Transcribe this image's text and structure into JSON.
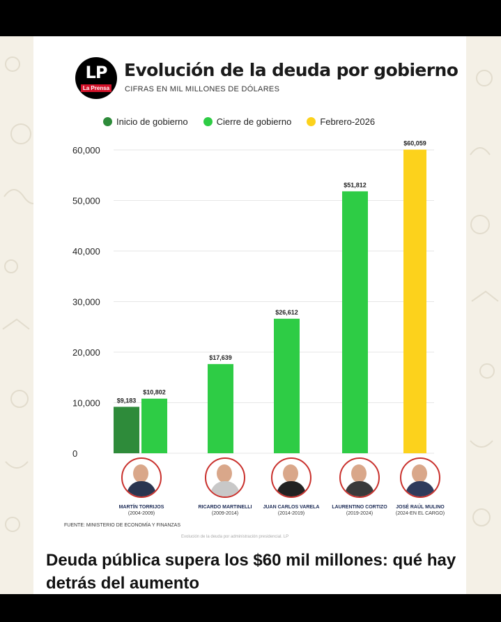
{
  "header": {
    "logo_text": "LP",
    "logo_subtext": "La Prensa",
    "title": "Evolución de la deuda por gobierno",
    "subtitle": "CIFRAS EN MIL MILLONES DE DÓLARES"
  },
  "legend": [
    {
      "label": "Inicio de gobierno",
      "color": "#2e8b3a"
    },
    {
      "label": "Cierre de gobierno",
      "color": "#2ecc45"
    },
    {
      "label": "Febrero-2026",
      "color": "#fcd21c"
    }
  ],
  "chart_data": {
    "type": "bar",
    "title": "Evolución de la deuda por gobierno",
    "subtitle": "CIFRAS EN MIL MILLONES DE DÓLARES",
    "ylim": [
      0,
      60000
    ],
    "yticks": [
      0,
      10000,
      20000,
      30000,
      40000,
      50000,
      60000
    ],
    "ytick_labels": [
      "0",
      "10,000",
      "20,000",
      "30,000",
      "40,000",
      "50,000",
      "60,000"
    ],
    "grid": true,
    "legend_position": "top",
    "categories": [
      "MARTÍN TORRIJOS",
      "RICARDO MARTINELLI",
      "JUAN CARLOS VARELA",
      "LAURENTINO CORTIZO",
      "JOSÉ RAÚL MULINO"
    ],
    "bars": [
      {
        "category": 0,
        "series": "Inicio de gobierno",
        "value": 9183,
        "label": "$9,183",
        "color": "#2e8b3a"
      },
      {
        "category": 0,
        "series": "Cierre de gobierno",
        "value": 10802,
        "label": "$10,802",
        "color": "#2ecc45"
      },
      {
        "category": 1,
        "series": "Cierre de gobierno",
        "value": 17639,
        "label": "$17,639",
        "color": "#2ecc45"
      },
      {
        "category": 2,
        "series": "Cierre de gobierno",
        "value": 26612,
        "label": "$26,612",
        "color": "#2ecc45"
      },
      {
        "category": 3,
        "series": "Cierre de gobierno",
        "value": 51812,
        "label": "$51,812",
        "color": "#2ecc45"
      },
      {
        "category": 4,
        "series": "Febrero-2026",
        "value": 60059,
        "label": "$60,059",
        "color": "#fcd21c"
      }
    ]
  },
  "people": [
    {
      "name": "MARTÍN TORRIJOS",
      "period": "(2004-2009)"
    },
    {
      "name": "RICARDO MARTINELLI",
      "period": "(2009-2014)"
    },
    {
      "name": "JUAN CARLOS VARELA",
      "period": "(2014-2019)"
    },
    {
      "name": "LAURENTINO CORTIZO",
      "period": "(2019-2024)"
    },
    {
      "name": "JOSÉ RAÚL MULINO",
      "period": "(2024-EN EL CARGO)"
    }
  ],
  "source_note": "FUENTE: MINISTERIO DE ECONOMÍA Y FINANZAS",
  "faint_caption": "Evolución de la deuda por administración presidencial. LP",
  "headline": "Deuda pública supera los $60 mil millones: qué hay detrás del aumento"
}
